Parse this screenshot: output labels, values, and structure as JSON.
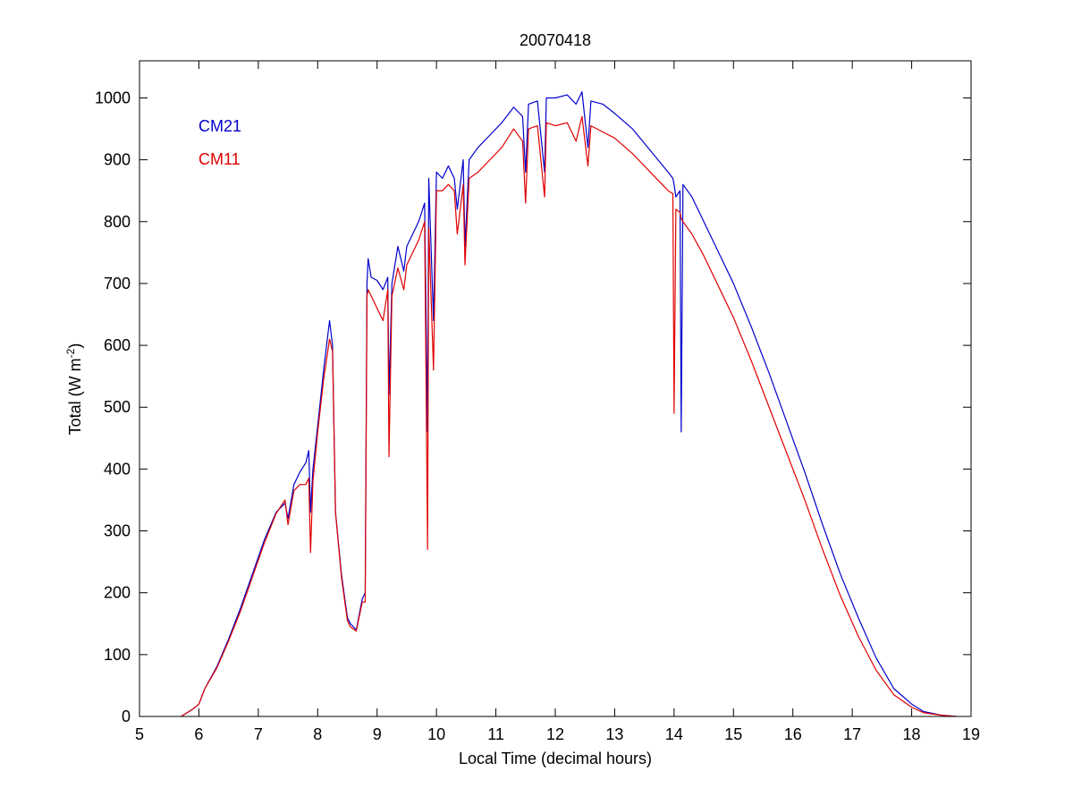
{
  "chart_data": {
    "type": "line",
    "title": "20070418",
    "xlabel": "Local Time (decimal hours)",
    "ylabel": {
      "text": "Total (W m",
      "superscript": "-2",
      "suffix": ")"
    },
    "xlim": [
      5,
      19
    ],
    "xticks": [
      5,
      6,
      7,
      8,
      9,
      10,
      11,
      12,
      13,
      14,
      15,
      16,
      17,
      18,
      19
    ],
    "ylim": [
      0,
      1060
    ],
    "yticks": [
      0,
      100,
      200,
      300,
      400,
      500,
      600,
      700,
      800,
      900,
      1000
    ],
    "grid": false,
    "legend_position": "upper left",
    "x": [
      5.7,
      5.9,
      6.0,
      6.1,
      6.3,
      6.5,
      6.7,
      6.9,
      7.1,
      7.3,
      7.45,
      7.5,
      7.6,
      7.7,
      7.8,
      7.85,
      7.88,
      7.92,
      8.0,
      8.1,
      8.2,
      8.25,
      8.3,
      8.4,
      8.5,
      8.55,
      8.65,
      8.75,
      8.8,
      8.83,
      8.85,
      8.9,
      9.0,
      9.1,
      9.18,
      9.2,
      9.25,
      9.35,
      9.45,
      9.5,
      9.6,
      9.7,
      9.8,
      9.85,
      9.87,
      9.95,
      10.0,
      10.1,
      10.2,
      10.3,
      10.35,
      10.45,
      10.48,
      10.55,
      10.7,
      10.9,
      11.1,
      11.3,
      11.45,
      11.5,
      11.55,
      11.7,
      11.82,
      11.85,
      12.0,
      12.2,
      12.35,
      12.45,
      12.55,
      12.6,
      12.8,
      13.0,
      13.3,
      13.6,
      13.9,
      13.98,
      14.0,
      14.03,
      14.1,
      14.12,
      14.15,
      14.3,
      14.5,
      14.8,
      15.0,
      15.3,
      15.6,
      15.9,
      16.2,
      16.5,
      16.8,
      17.1,
      17.4,
      17.7,
      18.0,
      18.2,
      18.5,
      18.75
    ],
    "series": [
      {
        "name": "CM21",
        "color": "#0000cc",
        "values": [
          0,
          12,
          20,
          45,
          80,
          125,
          175,
          230,
          285,
          330,
          345,
          320,
          375,
          395,
          410,
          430,
          330,
          400,
          470,
          560,
          640,
          600,
          330,
          230,
          160,
          150,
          140,
          190,
          200,
          700,
          740,
          710,
          705,
          690,
          710,
          520,
          700,
          760,
          720,
          760,
          780,
          800,
          830,
          460,
          870,
          640,
          880,
          870,
          890,
          870,
          820,
          900,
          760,
          900,
          920,
          940,
          960,
          985,
          970,
          880,
          990,
          995,
          880,
          1000,
          1000,
          1005,
          990,
          1010,
          920,
          995,
          990,
          975,
          950,
          915,
          880,
          870,
          860,
          840,
          850,
          460,
          860,
          840,
          800,
          740,
          700,
          630,
          555,
          475,
          395,
          310,
          230,
          160,
          95,
          45,
          20,
          8,
          2,
          0
        ]
      },
      {
        "name": "CM11",
        "color": "#e00000",
        "values": [
          0,
          12,
          20,
          45,
          78,
          122,
          170,
          225,
          280,
          328,
          350,
          310,
          365,
          375,
          375,
          385,
          265,
          380,
          460,
          545,
          610,
          590,
          330,
          225,
          155,
          145,
          138,
          185,
          185,
          680,
          690,
          680,
          660,
          640,
          690,
          420,
          680,
          725,
          690,
          730,
          750,
          770,
          800,
          270,
          790,
          560,
          850,
          850,
          860,
          850,
          780,
          860,
          730,
          870,
          880,
          900,
          920,
          950,
          930,
          830,
          950,
          955,
          840,
          960,
          955,
          960,
          930,
          970,
          890,
          955,
          945,
          935,
          910,
          880,
          850,
          845,
          490,
          820,
          815,
          805,
          800,
          780,
          745,
          685,
          645,
          575,
          500,
          425,
          350,
          270,
          195,
          130,
          75,
          35,
          15,
          6,
          2,
          0
        ]
      }
    ]
  }
}
